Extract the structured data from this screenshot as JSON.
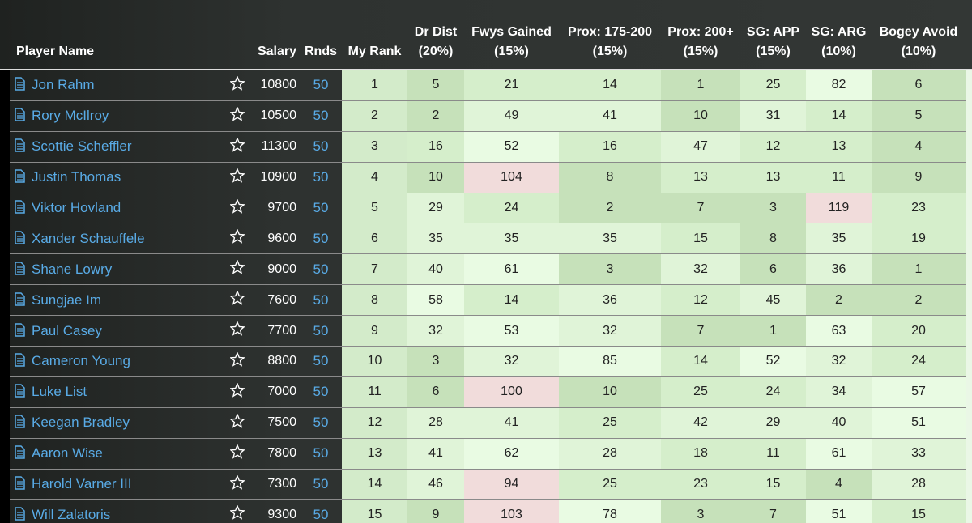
{
  "table": {
    "headers": [
      [
        "Player Name"
      ],
      [
        "Salary"
      ],
      [
        "Rnds"
      ],
      [
        "My Rank"
      ],
      [
        "Dr Dist",
        "(20%)"
      ],
      [
        "Fwys Gained",
        "(15%)"
      ],
      [
        "Prox: 175-200",
        "(15%)"
      ],
      [
        "Prox: 200+",
        "(15%)"
      ],
      [
        "SG: APP",
        "(15%)"
      ],
      [
        "SG: ARG",
        "(10%)"
      ],
      [
        "Bogey Avoid",
        "(10%)"
      ]
    ],
    "rows": [
      {
        "player": "Jon Rahm",
        "salary": 10800,
        "rnds": 50,
        "stats": [
          1,
          5,
          21,
          14,
          1,
          25,
          82,
          6
        ]
      },
      {
        "player": "Rory McIlroy",
        "salary": 10500,
        "rnds": 50,
        "stats": [
          2,
          2,
          49,
          41,
          10,
          31,
          14,
          5
        ]
      },
      {
        "player": "Scottie Scheffler",
        "salary": 11300,
        "rnds": 50,
        "stats": [
          3,
          16,
          52,
          16,
          47,
          12,
          13,
          4
        ]
      },
      {
        "player": "Justin Thomas",
        "salary": 10900,
        "rnds": 50,
        "stats": [
          4,
          10,
          104,
          8,
          13,
          13,
          11,
          9
        ]
      },
      {
        "player": "Viktor Hovland",
        "salary": 9700,
        "rnds": 50,
        "stats": [
          5,
          29,
          24,
          2,
          7,
          3,
          119,
          23
        ]
      },
      {
        "player": "Xander Schauffele",
        "salary": 9600,
        "rnds": 50,
        "stats": [
          6,
          35,
          35,
          35,
          15,
          8,
          35,
          19
        ]
      },
      {
        "player": "Shane Lowry",
        "salary": 9000,
        "rnds": 50,
        "stats": [
          7,
          40,
          61,
          3,
          32,
          6,
          36,
          1
        ]
      },
      {
        "player": "Sungjae Im",
        "salary": 7600,
        "rnds": 50,
        "stats": [
          8,
          58,
          14,
          36,
          12,
          45,
          2,
          2
        ]
      },
      {
        "player": "Paul Casey",
        "salary": 7700,
        "rnds": 50,
        "stats": [
          9,
          32,
          53,
          32,
          7,
          1,
          63,
          20
        ]
      },
      {
        "player": "Cameron Young",
        "salary": 8800,
        "rnds": 50,
        "stats": [
          10,
          3,
          32,
          85,
          14,
          52,
          32,
          24
        ]
      },
      {
        "player": "Luke List",
        "salary": 7000,
        "rnds": 50,
        "stats": [
          11,
          6,
          100,
          10,
          25,
          24,
          34,
          57
        ]
      },
      {
        "player": "Keegan Bradley",
        "salary": 7500,
        "rnds": 50,
        "stats": [
          12,
          28,
          41,
          25,
          42,
          29,
          40,
          51
        ]
      },
      {
        "player": "Aaron Wise",
        "salary": 7800,
        "rnds": 50,
        "stats": [
          13,
          41,
          62,
          28,
          18,
          11,
          61,
          33
        ]
      },
      {
        "player": "Harold Varner III",
        "salary": 7300,
        "rnds": 50,
        "stats": [
          14,
          46,
          94,
          25,
          23,
          15,
          4,
          28
        ]
      },
      {
        "player": "Will Zalatoris",
        "salary": 9300,
        "rnds": 50,
        "stats": [
          15,
          9,
          103,
          78,
          3,
          7,
          51,
          15
        ]
      }
    ]
  }
}
